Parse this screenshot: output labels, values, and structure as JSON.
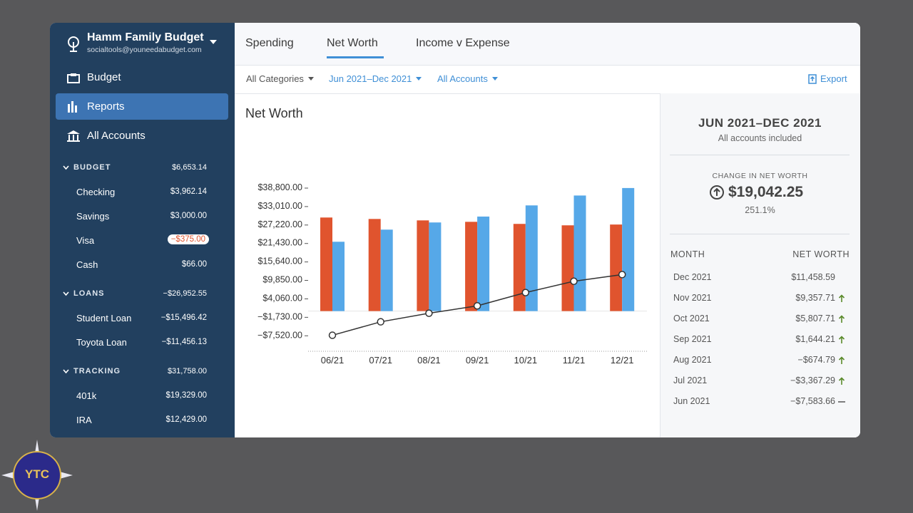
{
  "sidebar": {
    "budget_name": "Hamm Family Budget",
    "email": "socialtools@youneedabudget.com",
    "nav": [
      "Budget",
      "Reports",
      "All Accounts"
    ],
    "groups": [
      {
        "name": "BUDGET",
        "total": "$6,653.14",
        "accounts": [
          {
            "name": "Checking",
            "amount": "$3,962.14"
          },
          {
            "name": "Savings",
            "amount": "$3,000.00"
          },
          {
            "name": "Visa",
            "amount": "−$375.00"
          },
          {
            "name": "Cash",
            "amount": "$66.00"
          }
        ]
      },
      {
        "name": "LOANS",
        "total": "−$26,952.55",
        "accounts": [
          {
            "name": "Student Loan",
            "amount": "−$15,496.42"
          },
          {
            "name": "Toyota Loan",
            "amount": "−$11,456.13"
          }
        ]
      },
      {
        "name": "TRACKING",
        "total": "$31,758.00",
        "accounts": [
          {
            "name": "401k",
            "amount": "$19,329.00"
          },
          {
            "name": "IRA",
            "amount": "$12,429.00"
          }
        ]
      }
    ]
  },
  "tabs": [
    "Spending",
    "Net Worth",
    "Income v Expense"
  ],
  "filters": [
    "All Categories",
    "Jun 2021–Dec 2021",
    "All Accounts"
  ],
  "export": "Export",
  "chart_data": {
    "type": "bar",
    "title": "Net Worth",
    "categories": [
      "06/21",
      "07/21",
      "08/21",
      "09/21",
      "10/21",
      "11/21",
      "12/21"
    ],
    "series": [
      {
        "color": "#e0542e",
        "values": [
          29350,
          28900,
          28450,
          28000,
          27350,
          26900,
          27150
        ]
      },
      {
        "color": "#56a8e8",
        "values": [
          21750,
          25550,
          27800,
          29650,
          33150,
          36250,
          38600
        ]
      }
    ],
    "line": {
      "color": "#333333",
      "values": [
        -7583.66,
        -3367.29,
        -674.79,
        1644.21,
        5807.71,
        9357.71,
        11458.59
      ]
    },
    "ylim": [
      -12600,
      38800
    ],
    "yticks": [
      {
        "value": 38800,
        "label": "$38,800.00"
      },
      {
        "value": 33010,
        "label": "$33,010.00"
      },
      {
        "value": 27220,
        "label": "$27,220.00"
      },
      {
        "value": 21430,
        "label": "$21,430.00"
      },
      {
        "value": 15640,
        "label": "$15,640.00"
      },
      {
        "value": 9850,
        "label": "$9,850.00"
      },
      {
        "value": 4060,
        "label": "$4,060.00"
      },
      {
        "value": -1730,
        "label": "−$1,730.00"
      },
      {
        "value": -7520,
        "label": "−$7,520.00"
      }
    ]
  },
  "summary": {
    "period": "JUN 2021–DEC 2021",
    "subtitle": "All accounts included",
    "change_label": "CHANGE IN NET WORTH",
    "change_value": "$19,042.25",
    "change_percent": "251.1%",
    "table": {
      "headers": [
        "MONTH",
        "NET WORTH"
      ],
      "rows": [
        [
          "Dec 2021",
          "$11,458.59"
        ],
        [
          "Nov 2021",
          "$9,357.71"
        ],
        [
          "Oct 2021",
          "$5,807.71"
        ],
        [
          "Sep 2021",
          "$1,644.21"
        ],
        [
          "Aug 2021",
          "−$674.79"
        ],
        [
          "Jul 2021",
          "−$3,367.29"
        ],
        [
          "Jun 2021",
          "−$7,583.66"
        ]
      ]
    }
  },
  "logo": "YTC"
}
